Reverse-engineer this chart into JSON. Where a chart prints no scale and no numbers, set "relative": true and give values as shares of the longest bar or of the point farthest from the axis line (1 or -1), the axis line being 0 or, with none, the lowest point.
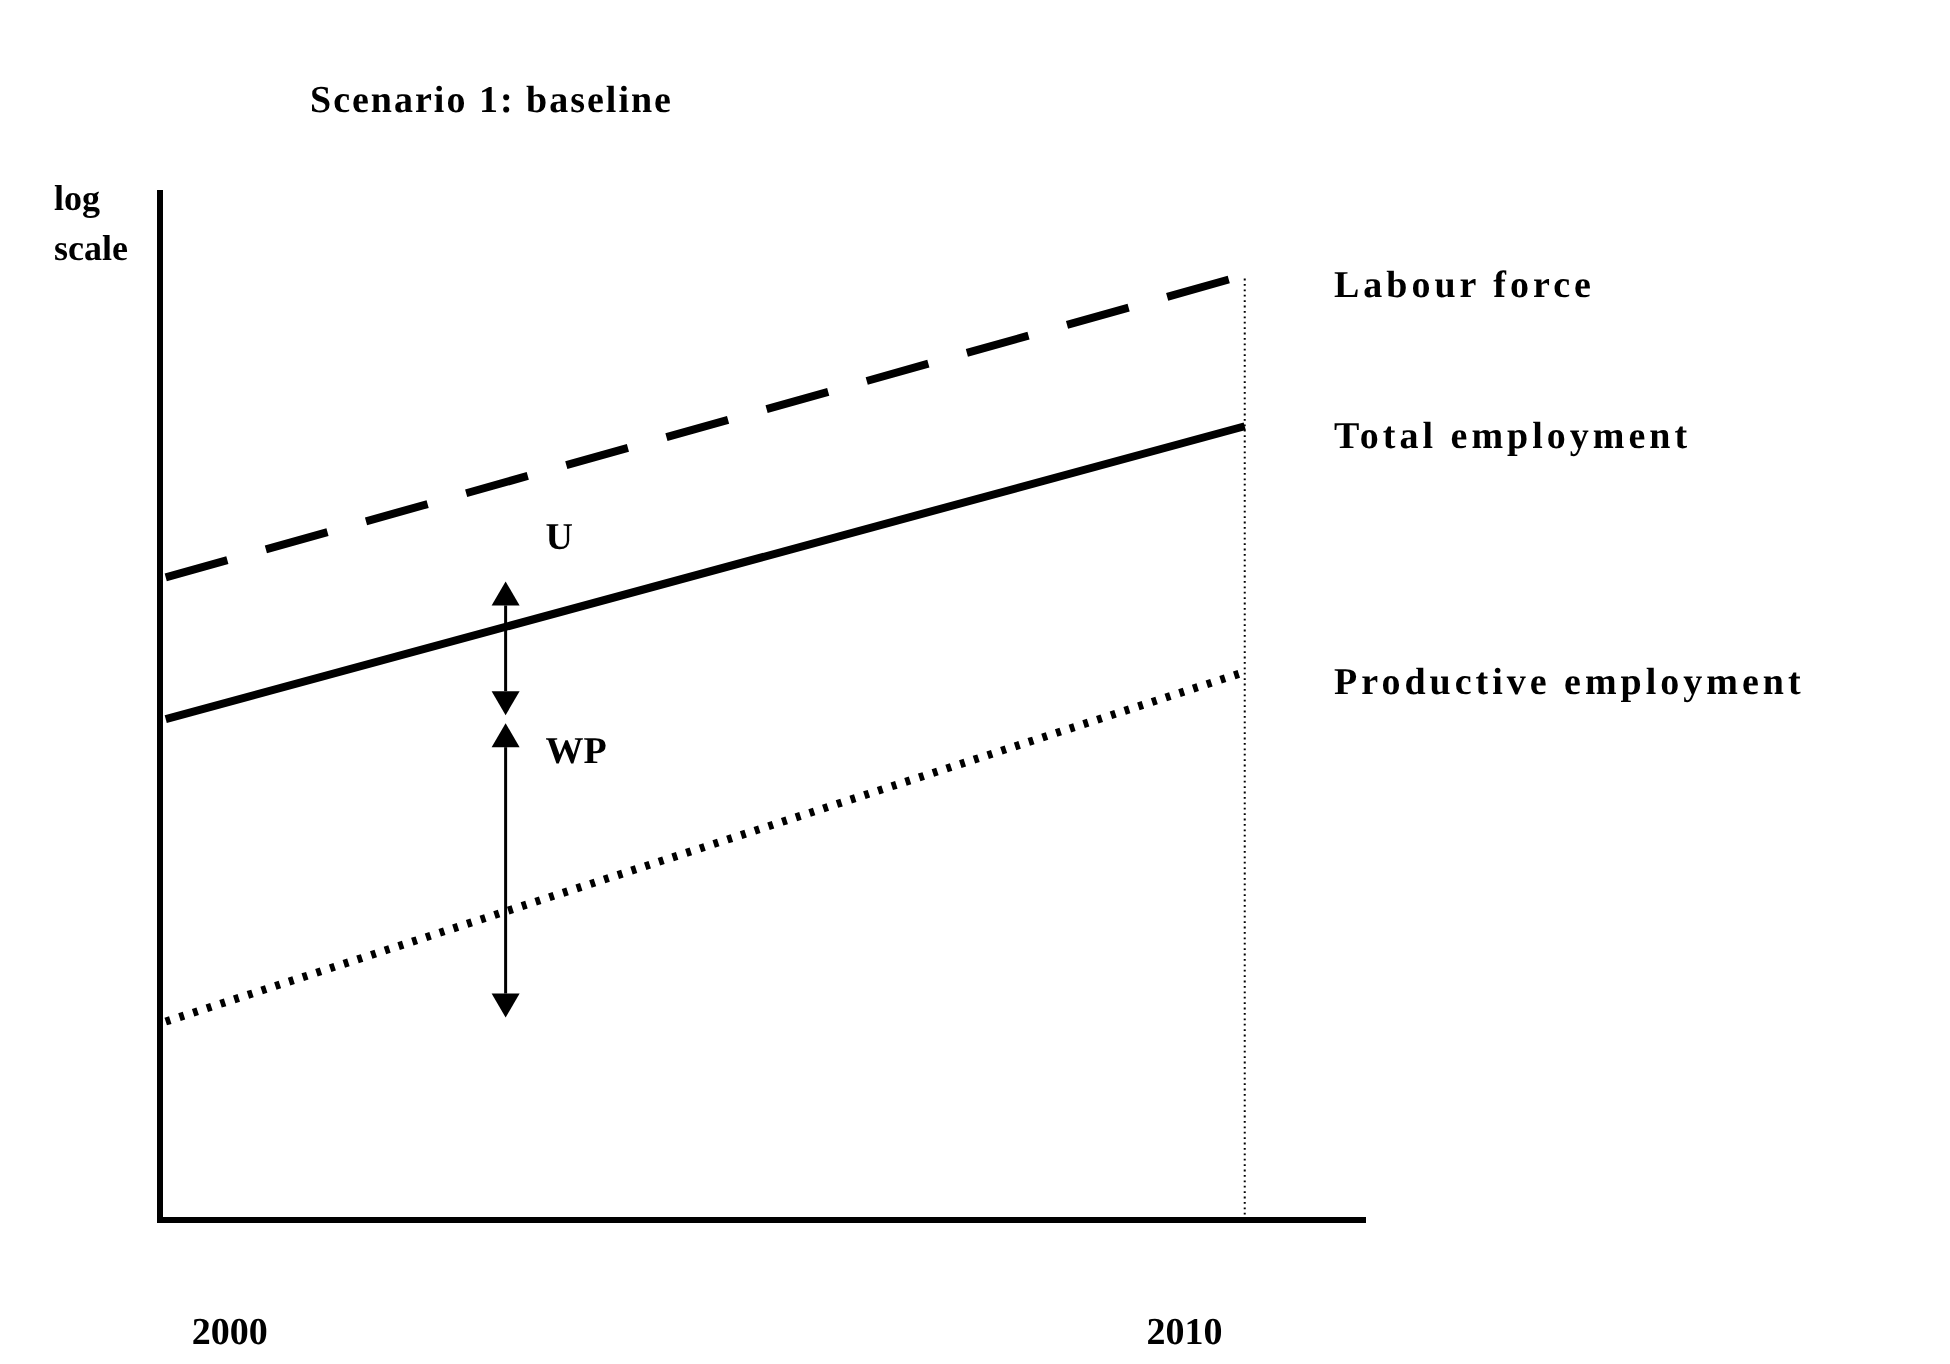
{
  "chart_data": {
    "type": "line",
    "title": "Scenario 1: baseline",
    "ylabel": "log scale",
    "relative": true,
    "x": [
      1999.33,
      2010.63
    ],
    "xlim": [
      1999.27,
      2011.9
    ],
    "xticks": [
      2000,
      2010
    ],
    "grid": false,
    "legend": false,
    "marker": "none",
    "series": [
      {
        "name": "Labour force",
        "color": "#000000",
        "line_style": "dashed",
        "values": [
          0.68,
          1
        ]
      },
      {
        "name": "Total employment",
        "color": "#000000",
        "line_style": "solid",
        "values": [
          0.53,
          0.84
        ]
      },
      {
        "name": "Productive employment",
        "color": "#000000",
        "line_style": "dotted",
        "values": [
          0.21,
          0.58
        ]
      }
    ],
    "ref_lines": [
      {
        "axis": "x",
        "value": 2010.63,
        "line_style": "dotted",
        "color": "#000000"
      }
    ],
    "annotations": [
      "U",
      "WP"
    ]
  }
}
